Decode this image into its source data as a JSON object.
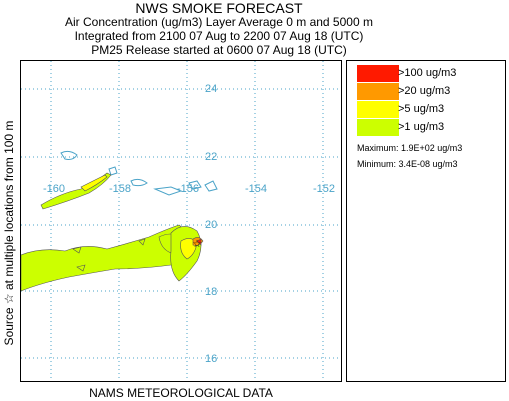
{
  "header": {
    "title": "NWS SMOKE FORECAST",
    "line1": "Air Concentration (ug/m3) Layer Average    0 m and  5000 m",
    "line2": "Integrated from 2100 07 Aug to 2200 07 Aug 18 (UTC)",
    "line3": "PM25 Release started at 0600 07 Aug 18 (UTC)"
  },
  "side_label": "Source ☆    at multiple locations      from   100 m",
  "bottom_label": "NAMS METEOROLOGICAL DATA",
  "map": {
    "lat_labels": [
      "24",
      "22",
      "20",
      "18",
      "16"
    ],
    "lon_labels": [
      "-160",
      "-158",
      "-156",
      "-154",
      "-152"
    ],
    "grid_color": "#4aa3c8",
    "coast_color": "#4aa3c8"
  },
  "legend": {
    "items": [
      {
        "label": ">100 ug/m3",
        "color": "#ff1a00"
      },
      {
        "label": ">20 ug/m3",
        "color": "#ff9900"
      },
      {
        "label": ">5 ug/m3",
        "color": "#ffff00"
      },
      {
        "label": ">1 ug/m3",
        "color": "#ccff00"
      }
    ],
    "maximum": "Maximum: 1.9E+02 ug/m3",
    "minimum": "Minimum: 3.4E-08 ug/m3"
  }
}
